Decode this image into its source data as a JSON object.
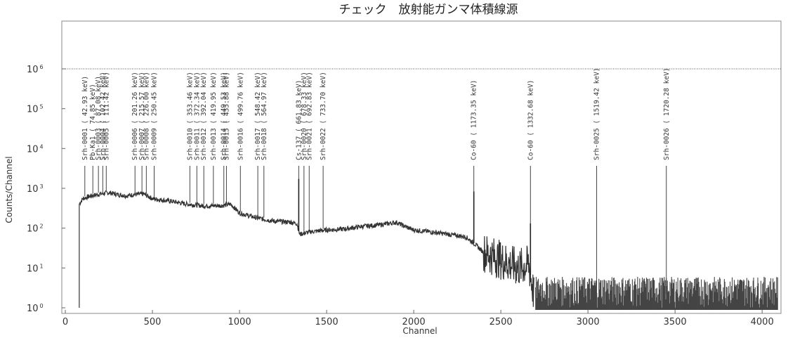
{
  "chart_data": {
    "type": "line",
    "title": "チェック　放射能ガンマ体積線源",
    "xlabel": "Channel",
    "ylabel": "Counts/Channel",
    "xlim": [
      0,
      4096
    ],
    "ylim_log10": [
      0,
      7.2
    ],
    "y_scale": "log",
    "grid": false,
    "reference_level": 1000000,
    "x_ticks": [
      "0",
      "500",
      "1000",
      "1500",
      "2000",
      "2500",
      "3000",
      "3500",
      "4000"
    ],
    "x_tick_values": [
      0,
      500,
      1000,
      1500,
      2000,
      2500,
      3000,
      3500,
      4000
    ],
    "y_ticks": [
      {
        "base": "10",
        "exp": "0",
        "value": 1
      },
      {
        "base": "10",
        "exp": "1",
        "value": 10
      },
      {
        "base": "10",
        "exp": "2",
        "value": 100
      },
      {
        "base": "10",
        "exp": "3",
        "value": 1000
      },
      {
        "base": "10",
        "exp": "4",
        "value": 10000
      },
      {
        "base": "10",
        "exp": "5",
        "value": 100000
      },
      {
        "base": "10",
        "exp": "6",
        "value": 1000000
      }
    ],
    "spectrum_envelope": {
      "x": [
        80,
        100,
        150,
        200,
        250,
        300,
        350,
        400,
        450,
        500,
        600,
        700,
        800,
        900,
        950,
        1000,
        1100,
        1200,
        1300,
        1330,
        1345,
        1400,
        1500,
        1600,
        1700,
        1800,
        1900,
        1950,
        2000,
        2100,
        2200,
        2300,
        2350,
        2400,
        2500,
        2600,
        2660,
        2690,
        2750,
        2900,
        3100,
        3300,
        3500,
        3700,
        3900,
        4090
      ],
      "y": [
        400,
        550,
        650,
        720,
        780,
        700,
        650,
        700,
        720,
        550,
        480,
        400,
        360,
        370,
        400,
        240,
        180,
        150,
        140,
        130,
        70,
        80,
        90,
        95,
        110,
        120,
        140,
        110,
        90,
        80,
        70,
        60,
        40,
        25,
        16,
        10,
        12,
        2,
        2,
        2,
        2,
        2,
        2,
        2,
        2,
        2
      ]
    },
    "series": [
      {
        "values_note": "",
        "x": [],
        "y": []
      }
    ],
    "peaks": [
      {
        "label": "Srh-0001 (  42.93 keV)",
        "channel": 112,
        "line_top_y": 0.88
      },
      {
        "label": "Pb-Ka1 (  74.85 keV)",
        "channel": 158,
        "line_top_y": 0.88
      },
      {
        "label": "Srh-0003 (  87.08 keV)",
        "channel": 190,
        "line_top_y": 0.88
      },
      {
        "label": "Srh-0004 (  102.42 keV)",
        "channel": 215,
        "line_top_y": 0.88
      },
      {
        "label": "Srh-0005 (  111.42 keV)",
        "channel": 235,
        "line_top_y": 0.88
      },
      {
        "label": "Srh-0006 (  201.26 keV)",
        "channel": 400,
        "line_top_y": 0.88
      },
      {
        "label": "Srh-0007 (  215.57 keV)",
        "channel": 440,
        "line_top_y": 0.88
      },
      {
        "label": "Srh-0008 (  226.00 keV)",
        "channel": 465,
        "line_top_y": 0.88
      },
      {
        "label": "Srh-0009 (  250.45 keV)",
        "channel": 510,
        "line_top_y": 0.88
      },
      {
        "label": "Srh-0010 (  353.46 keV)",
        "channel": 715,
        "line_top_y": 0.88
      },
      {
        "label": "Srh-0011 (  372.34 keV)",
        "channel": 755,
        "line_top_y": 0.88
      },
      {
        "label": "Srh-0012 (  392.04 keV)",
        "channel": 795,
        "line_top_y": 0.88
      },
      {
        "label": "Srh-0013 (  419.95 keV)",
        "channel": 850,
        "line_top_y": 0.88
      },
      {
        "label": "Srh-0014 (  449.53 keV)",
        "channel": 910,
        "line_top_y": 0.88
      },
      {
        "label": "Srh-0015 (  455.88 keV)",
        "channel": 925,
        "line_top_y": 0.88
      },
      {
        "label": "Srh-0016 (  499.76 keV)",
        "channel": 1005,
        "line_top_y": 0.88
      },
      {
        "label": "Srh-0017 (  548.42 keV)",
        "channel": 1105,
        "line_top_y": 0.88
      },
      {
        "label": "Srh-0018 (  564.97 keV)",
        "channel": 1140,
        "line_top_y": 0.88
      },
      {
        "label": "Cs-137 (  661.83 keV)",
        "channel": 1340,
        "line_top_y": 0.88
      },
      {
        "label": "Srh-0020 (  678.33 keV)",
        "channel": 1370,
        "line_top_y": 0.88
      },
      {
        "label": "Srh-0021 (  692.83 keV)",
        "channel": 1400,
        "line_top_y": 0.88
      },
      {
        "label": "Srh-0022 (  733.70 keV)",
        "channel": 1480,
        "line_top_y": 0.88
      },
      {
        "label": "Co-60 ( 1173.35 keV)",
        "channel": 2345,
        "line_top_y": 0.88
      },
      {
        "label": "Co-60 ( 1332.68 keV)",
        "channel": 2670,
        "line_top_y": 0.88
      },
      {
        "label": "Srh-0025 ( 1519.42 keV)",
        "channel": 3050,
        "line_top_y": 0.88
      },
      {
        "label": "Srh-0026 ( 1720.28 keV)",
        "channel": 3450,
        "line_top_y": 0.88
      }
    ]
  }
}
